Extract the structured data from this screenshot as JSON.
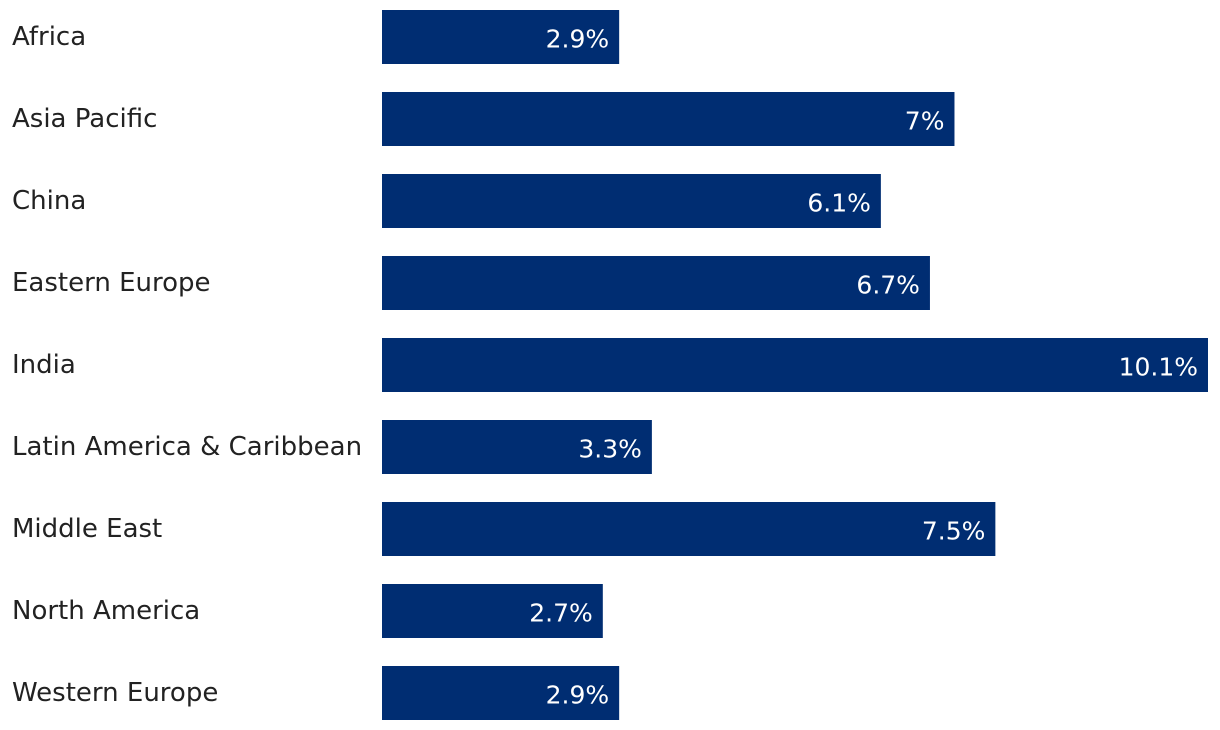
{
  "chart_data": {
    "type": "bar",
    "orientation": "horizontal",
    "categories": [
      "Africa",
      "Asia Pacific",
      "China",
      "Eastern Europe",
      "India",
      "Latin America & Caribbean",
      "Middle East",
      "North America",
      "Western Europe"
    ],
    "values": [
      2.9,
      7,
      6.1,
      6.7,
      10.1,
      3.3,
      7.5,
      2.7,
      2.9
    ],
    "value_labels": [
      "2.9%",
      "7%",
      "6.1%",
      "6.7%",
      "10.1%",
      "3.3%",
      "7.5%",
      "2.7%",
      "2.9%"
    ],
    "unit": "%",
    "xlim": [
      0,
      10.1
    ],
    "grid": false,
    "bar_color": "#002d72",
    "label_color": "#ffffff"
  }
}
